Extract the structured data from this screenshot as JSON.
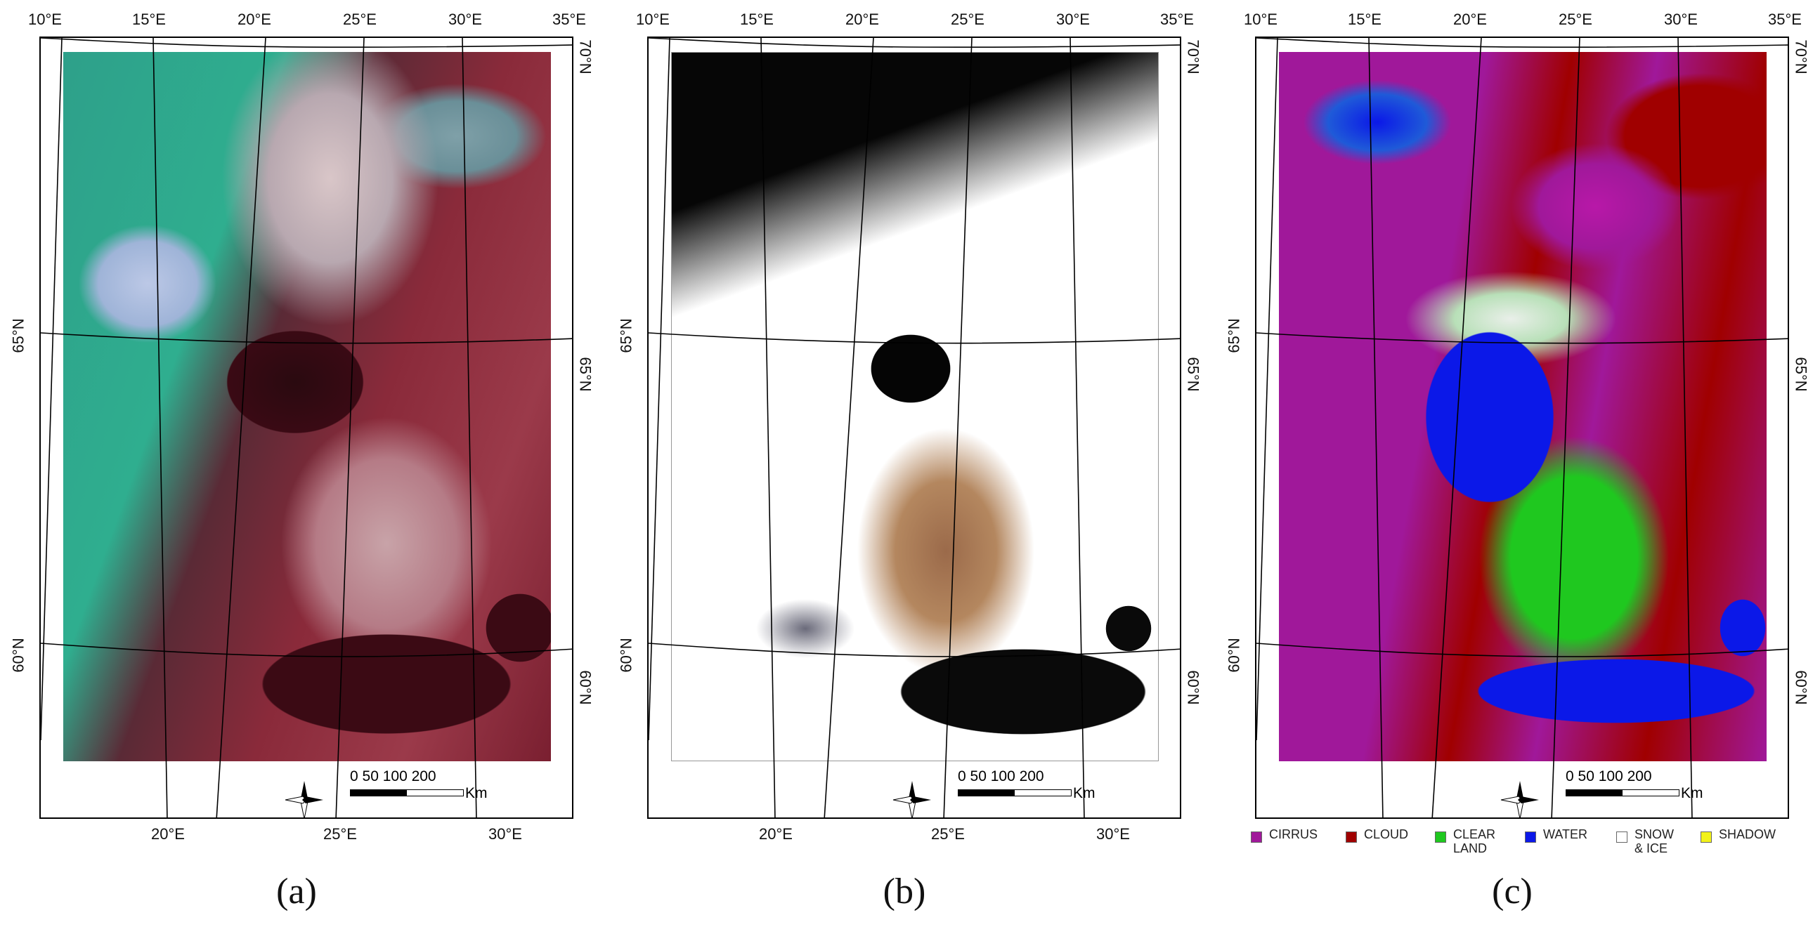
{
  "panels": [
    {
      "id": "a",
      "caption": "(a)",
      "description_kind": "false-color"
    },
    {
      "id": "b",
      "caption": "(b)",
      "description_kind": "cloud-mask"
    },
    {
      "id": "c",
      "caption": "(c)",
      "description_kind": "classification"
    }
  ],
  "top_lon_labels": [
    "10°E",
    "15°E",
    "20°E",
    "25°E",
    "30°E",
    "35°E"
  ],
  "bottom_lon_labels": [
    "20°E",
    "25°E",
    "30°E"
  ],
  "lat_labels_left": [
    "65°N",
    "60°N"
  ],
  "lat_labels_right": [
    "70°N",
    "65°N",
    "60°N"
  ],
  "scale": {
    "ticks": "0   50 100      200",
    "unit": "Km"
  },
  "north_label": "N",
  "legend": [
    {
      "label": "CIRRUS",
      "color": "#a0189a"
    },
    {
      "label": "CLOUD",
      "color": "#a00000"
    },
    {
      "label": "CLEAR\nLAND",
      "color": "#1fc81f"
    },
    {
      "label": "WATER",
      "color": "#0b18e8"
    },
    {
      "label": "SNOW\n& ICE",
      "color": "#ffffff"
    },
    {
      "label": "SHADOW",
      "color": "#f2f21a"
    }
  ]
}
